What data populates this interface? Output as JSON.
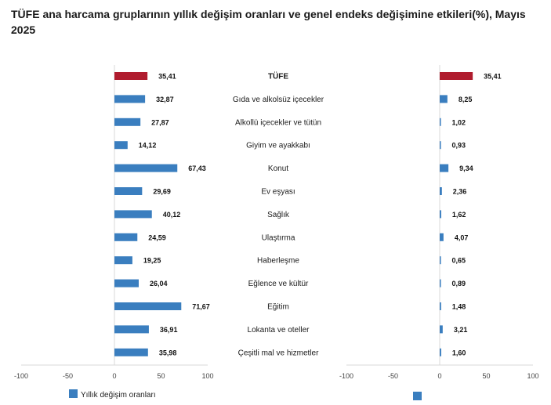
{
  "title": "TÜFE ana harcama gruplarının yıllık değişim oranları ve genel endeks değişimine etkileri(%), Mayıs 2025",
  "colors": {
    "highlight": "#b01c2e",
    "bar": "#3a7ebf",
    "axis": "#d9d9d9",
    "tick_text": "#444444"
  },
  "legend": {
    "left_label": "Yıllık değişim oranları",
    "right_label": ""
  },
  "chart_data": [
    {
      "type": "bar",
      "orientation": "horizontal",
      "xlim": [
        -100,
        100
      ],
      "xticks": [
        "-100",
        "-50",
        "0",
        "50",
        "100"
      ],
      "categories": [
        "TÜFE",
        "Gıda ve alkolsüz içecekler",
        "Alkollü içecekler ve tütün",
        "Giyim ve ayakkabı",
        "Konut",
        "Ev eşyası",
        "Sağlık",
        "Ulaştırma",
        "Haberleşme",
        "Eğlence ve kültür",
        "Eğitim",
        "Lokanta ve oteller",
        "Çeşitli mal ve hizmetler"
      ],
      "values": [
        35.41,
        32.87,
        27.87,
        14.12,
        67.43,
        29.69,
        40.12,
        24.59,
        19.25,
        26.04,
        71.67,
        36.91,
        35.98
      ],
      "labels": [
        "35,41",
        "32,87",
        "27,87",
        "14,12",
        "67,43",
        "29,69",
        "40,12",
        "24,59",
        "19,25",
        "26,04",
        "71,67",
        "36,91",
        "35,98"
      ],
      "series_name": "Yıllık değişim oranları"
    },
    {
      "type": "bar",
      "orientation": "horizontal",
      "xlim": [
        -100,
        100
      ],
      "xticks": [
        "-100",
        "-50",
        "0",
        "50",
        "100"
      ],
      "categories": [
        "TÜFE",
        "Gıda ve alkolsüz içecekler",
        "Alkollü içecekler ve tütün",
        "Giyim ve ayakkabı",
        "Konut",
        "Ev eşyası",
        "Sağlık",
        "Ulaştırma",
        "Haberleşme",
        "Eğlence ve kültür",
        "Eğitim",
        "Lokanta ve oteller",
        "Çeşitli mal ve hizmetler"
      ],
      "values": [
        35.41,
        8.25,
        1.02,
        0.93,
        9.34,
        2.36,
        1.62,
        4.07,
        0.65,
        0.89,
        1.48,
        3.21,
        1.6
      ],
      "labels": [
        "35,41",
        "8,25",
        "1,02",
        "0,93",
        "9,34",
        "2,36",
        "1,62",
        "4,07",
        "0,65",
        "0,89",
        "1,48",
        "3,21",
        "1,60"
      ]
    }
  ]
}
